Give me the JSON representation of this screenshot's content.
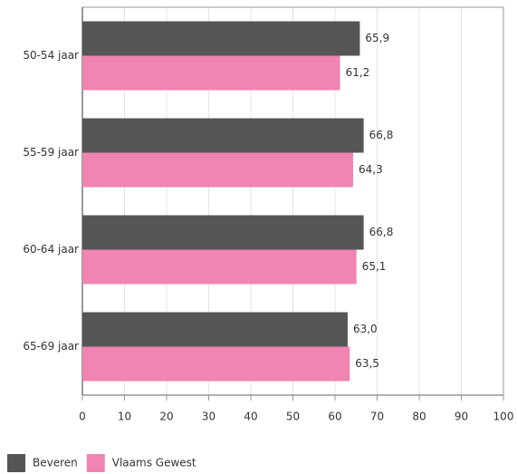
{
  "chart_data": {
    "type": "bar",
    "orientation": "horizontal",
    "categories": [
      "50-54 jaar",
      "55-59 jaar",
      "60-64 jaar",
      "65-69 jaar"
    ],
    "series": [
      {
        "name": "Beveren",
        "color": "#555555",
        "values": [
          65.9,
          66.8,
          66.8,
          63.0
        ],
        "value_labels": [
          "65,9",
          "66,8",
          "66,8",
          "63,0"
        ]
      },
      {
        "name": "Vlaams Gewest",
        "color": "#f084b2",
        "values": [
          61.2,
          64.3,
          65.1,
          63.5
        ],
        "value_labels": [
          "61,2",
          "64,3",
          "65,1",
          "63,5"
        ]
      }
    ],
    "xlim": [
      0,
      100
    ],
    "xticks": [
      0,
      10,
      20,
      30,
      40,
      50,
      60,
      70,
      80,
      90,
      100
    ],
    "grid": true
  }
}
